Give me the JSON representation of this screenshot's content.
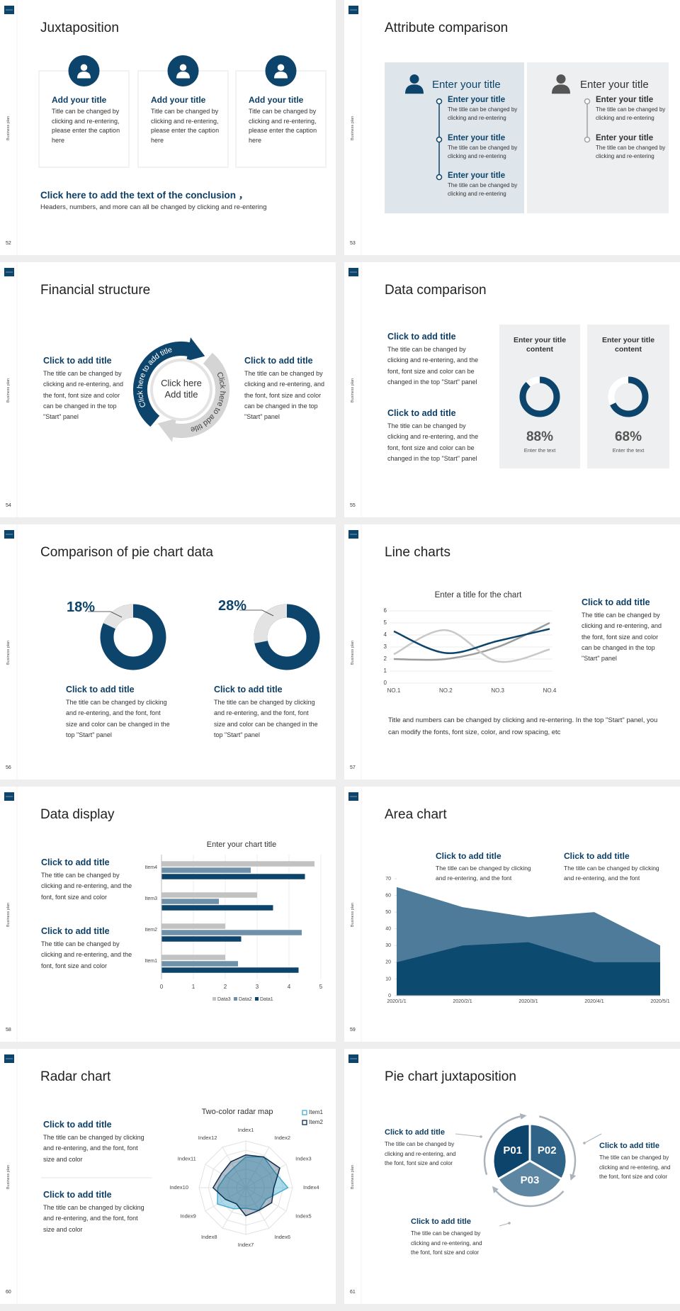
{
  "slides": [
    {
      "number": "52",
      "side_label": "Business plan",
      "title": "Juxtaposition",
      "cards": [
        {
          "title": "Add your title",
          "text": "Title can be changed by clicking and re-entering, please enter the caption here"
        },
        {
          "title": "Add your title",
          "text": "Title can be changed by clicking and re-entering, please enter the caption here"
        },
        {
          "title": "Add your title",
          "text": "Title can be changed by clicking and re-entering, please enter the caption here"
        }
      ],
      "conclusion": {
        "title": "Click here to add the text of the conclusion ，",
        "text": "Headers, numbers, and more can all be changed by clicking and re-entering"
      }
    },
    {
      "number": "53",
      "side_label": "Business plan",
      "title": "Attribute comparison",
      "panels": [
        {
          "title": "Enter your title",
          "items": [
            {
              "title": "Enter your title",
              "text": "The title can be changed by clicking and re-entering"
            },
            {
              "title": "Enter your title",
              "text": "The title can be changed by clicking and re-entering"
            },
            {
              "title": "Enter your title",
              "text": "The title can be changed by clicking and re-entering"
            }
          ]
        },
        {
          "title": "Enter your title",
          "items": [
            {
              "title": "Enter your title",
              "text": "The title can be changed by clicking and re-entering"
            },
            {
              "title": "Enter your title",
              "text": "The title can be changed by clicking and re-entering"
            }
          ]
        }
      ]
    },
    {
      "number": "54",
      "side_label": "Business plan",
      "title": "Financial structure",
      "blocks": [
        {
          "title": "Click to add title",
          "text": "The title can be changed by clicking and re-entering, and the font, font size and color can be changed in the top \"Start\" panel"
        },
        {
          "title": "Click to add title",
          "text": "The title can be changed by clicking and re-entering, and the font, font size and color can be changed in the top \"Start\" panel"
        }
      ],
      "center_text": "Click here Add title",
      "arc_labels": [
        "Click here to add title",
        "Click here to add title"
      ]
    },
    {
      "number": "55",
      "side_label": "Business plan",
      "title": "Data comparison",
      "blocks": [
        {
          "title": "Click to add title",
          "text": "The title can be changed by clicking and re-entering, and the font, font size and color can be changed in the top \"Start\" panel"
        },
        {
          "title": "Click to add title",
          "text": "The title can be changed by clicking and re-entering, and the font, font size and color can be changed in the top \"Start\" panel"
        }
      ],
      "cards": [
        {
          "title": "Enter your title content",
          "value": 88,
          "value_label": "88%",
          "caption": "Enter the text",
          "color": "#0d446b"
        },
        {
          "title": "Enter your title content",
          "value": 68,
          "value_label": "68%",
          "caption": "Enter the text",
          "color": "#0d446b"
        }
      ]
    },
    {
      "number": "56",
      "side_label": "Business plan",
      "title": "Comparison of pie chart data",
      "items": [
        {
          "value": 18,
          "value_label": "18%",
          "color": "#e3e3e3",
          "title": "Click to add title",
          "text": "The title can be changed by clicking and re-entering, and the font, font size and color can be changed in the top \"Start\" panel"
        },
        {
          "value": 28,
          "value_label": "28%",
          "color": "#e3e3e3",
          "title": "Click to add title",
          "text": "The title can be changed by clicking and re-entering, and the font, font size and color can be changed in the top \"Start\" panel"
        }
      ]
    },
    {
      "number": "57",
      "side_label": "Business plan",
      "title": "Line charts",
      "chart": {
        "type": "line",
        "title": "Enter a title for the chart",
        "categories": [
          "NO.1",
          "NO.2",
          "NO.3",
          "NO.4"
        ],
        "series": [
          {
            "color": "#0d446b",
            "values": [
              4.3,
              2.5,
              3.5,
              4.5
            ]
          },
          {
            "color": "#c8c8c8",
            "values": [
              2.4,
              4.4,
              1.8,
              2.8
            ]
          },
          {
            "color": "#9b9b9b",
            "values": [
              2,
              2,
              3,
              5
            ]
          }
        ],
        "ylim": [
          0,
          6
        ],
        "yticks": [
          0,
          1,
          2,
          3,
          4,
          5,
          6
        ],
        "grid": true
      },
      "block": {
        "title": "Click to add title",
        "text": "The title can be changed by clicking and re-entering, and the font, font size and color can be changed in the top \"Start\" panel"
      },
      "note": "Title and numbers can be changed by clicking and re-entering. In the top \"Start\" panel, you can modify the fonts, font size, color, and row spacing, etc"
    },
    {
      "number": "58",
      "side_label": "Business plan",
      "title": "Data display",
      "blocks": [
        {
          "title": "Click to add title",
          "text": "The title can be changed by clicking and re-entering, and the font, font size and color"
        },
        {
          "title": "Click to add title",
          "text": "The title can be changed by clicking and re-entering, and the font, font size and color"
        }
      ],
      "chart": {
        "type": "bar",
        "orientation": "horizontal",
        "title": "Enter your chart title",
        "categories": [
          "Item1",
          "Item2",
          "Item3",
          "Item4"
        ],
        "series": [
          {
            "name": "Data1",
            "color": "#0d446b",
            "values": [
              4.3,
              2.5,
              3.5,
              4.5
            ]
          },
          {
            "name": "Data2",
            "color": "#6f90a9",
            "values": [
              2.4,
              4.4,
              1.8,
              2.8
            ]
          },
          {
            "name": "Data3",
            "color": "#c2c2c2",
            "values": [
              2,
              2,
              3,
              4.8
            ]
          }
        ],
        "xlim": [
          0,
          5
        ],
        "xticks": [
          0,
          1,
          2,
          3,
          4,
          5
        ],
        "grid": true,
        "legend": "bottom"
      }
    },
    {
      "number": "59",
      "side_label": "Business plan",
      "title": "Area chart",
      "blocks": [
        {
          "title": "Click to add title",
          "text": "The title can be changed by clicking and re-entering, and the font"
        },
        {
          "title": "Click to add title",
          "text": "The title can be changed by clicking and re-entering, and the font"
        }
      ],
      "chart": {
        "type": "area",
        "x": [
          "2020/1/1",
          "2020/2/1",
          "2020/3/1",
          "2020/4/1",
          "2020/5/1"
        ],
        "series": [
          {
            "color": "#4e7b99",
            "values": [
              65,
              53,
              47,
              50,
              30
            ]
          },
          {
            "color": "#0d4a70",
            "values": [
              20,
              30,
              32,
              20,
              20
            ]
          }
        ],
        "ylim": [
          0,
          70
        ],
        "yticks": [
          0,
          10,
          20,
          30,
          40,
          50,
          60,
          70
        ]
      }
    },
    {
      "number": "60",
      "side_label": "Business plan",
      "title": "Radar chart",
      "blocks": [
        {
          "title": "Click to add title",
          "text": "The title can be changed by clicking and re-entering, and the font, font size and color"
        },
        {
          "title": "Click to add title",
          "text": "The title can be changed by clicking and re-entering, and the font, font size and color"
        }
      ],
      "chart": {
        "type": "radar",
        "title": "Two-color radar map",
        "categories": [
          "Index1",
          "Index2",
          "Index3",
          "Index4",
          "Index5",
          "Index6",
          "Index7",
          "Index8",
          "Index9",
          "Index10",
          "Index11",
          "Index12"
        ],
        "series": [
          {
            "name": "Item1",
            "color": "#4aaed0",
            "values": [
              3.3,
              3.8,
              3.5,
              4.5,
              2.5,
              2.8,
              2.2,
              2.6,
              3.5,
              3,
              2.5,
              2.5
            ]
          },
          {
            "name": "Item2",
            "color": "#0d2d4f",
            "values": [
              3.5,
              3.8,
              4.2,
              3,
              3.2,
              2.8,
              3,
              2,
              2.5,
              3.5,
              3,
              3.2
            ]
          }
        ],
        "rlim": [
          0,
          5
        ],
        "legend": "top-right"
      }
    },
    {
      "number": "61",
      "side_label": "Business plan",
      "title": "Pie chart juxtaposition",
      "segments": [
        "P01",
        "P02",
        "P03"
      ],
      "blocks": [
        {
          "title": "Click to add title",
          "text": "The title can be changed by clicking and re-entering, and the font, font size and color"
        },
        {
          "title": "Click to add title",
          "text": "The title can be changed by clicking and re-entering, and the font, font size and color"
        },
        {
          "title": "Click to add title",
          "text": "The title can be changed by clicking and re-entering, and the font, font size and color"
        }
      ]
    }
  ]
}
